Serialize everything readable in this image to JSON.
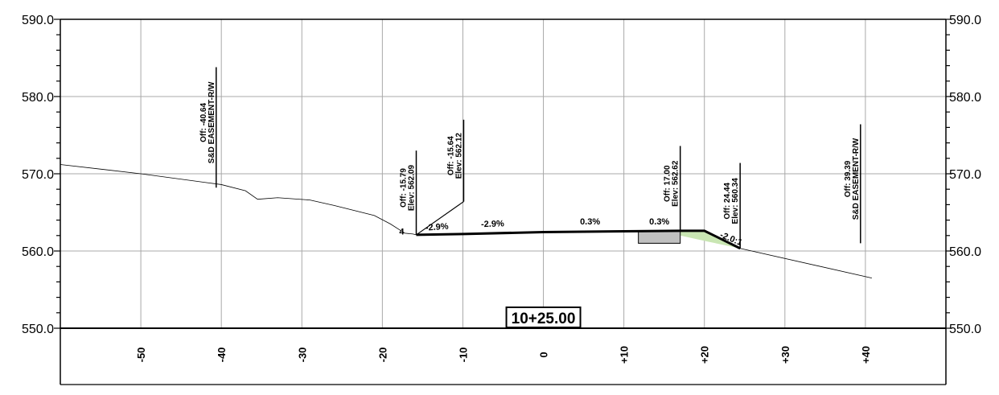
{
  "station": "10+25.00",
  "axes": {
    "x_range": [
      -60,
      50
    ],
    "y_range": [
      550,
      590
    ],
    "y_ticks": [
      {
        "value": 590,
        "label": "590.0"
      },
      {
        "value": 580,
        "label": "580.0"
      },
      {
        "value": 570,
        "label": "570.0"
      },
      {
        "value": 560,
        "label": "560.0"
      },
      {
        "value": 550,
        "label": "550.0"
      }
    ],
    "x_ticks": [
      {
        "value": -50,
        "label": "-50"
      },
      {
        "value": -40,
        "label": "-40"
      },
      {
        "value": -30,
        "label": "-30"
      },
      {
        "value": -20,
        "label": "-20"
      },
      {
        "value": -10,
        "label": "-10"
      },
      {
        "value": 0,
        "label": "0"
      },
      {
        "value": 10,
        "label": "+10"
      },
      {
        "value": 20,
        "label": "+20"
      },
      {
        "value": 30,
        "label": "+30"
      },
      {
        "value": 40,
        "label": "+40"
      }
    ]
  },
  "annotations": [
    {
      "x": -40.64,
      "y_low": 568.2,
      "y_high": 583.8,
      "line1": "Off: -40.64",
      "line2": "S&D EASEMENT-R/W"
    },
    {
      "x": -15.79,
      "y_low": 562.1,
      "y_high": 573.0,
      "line1": "Off: -15.79",
      "line2": "Elev: 562.09"
    },
    {
      "x": -9.9,
      "y_low": 566.4,
      "y_high": 577.0,
      "line1": "Off: -15.64",
      "line2": "Elev: 562.12"
    },
    {
      "x": 17.0,
      "y_low": 562.6,
      "y_high": 573.6,
      "line1": "Off: 17.00",
      "line2": "Elev: 562.62"
    },
    {
      "x": 24.44,
      "y_low": 560.3,
      "y_high": 571.4,
      "line1": "Off: 24.44",
      "line2": "Elev: 560.34"
    },
    {
      "x": 39.39,
      "y_low": 561.0,
      "y_high": 576.4,
      "line1": "Off: 39.39",
      "line2": "S&D EASEMENT-R/W"
    }
  ],
  "slopes": [
    {
      "x": -13.2,
      "y": 562.75,
      "text": "-2.9%",
      "rot": -4
    },
    {
      "x": -6.3,
      "y": 563.15,
      "text": "-2.9%",
      "rot": -2
    },
    {
      "x": 5.8,
      "y": 563.45,
      "text": "0.3%",
      "rot": 0
    },
    {
      "x": 14.4,
      "y": 563.45,
      "text": "0.3%",
      "rot": 0
    },
    {
      "x": 23.2,
      "y": 561.25,
      "text": "-2.0:1",
      "rot": 22
    },
    {
      "x": -17.6,
      "y": 562.15,
      "text": "4",
      "rot": 0
    }
  ],
  "ground": [
    [
      -60,
      571.2
    ],
    [
      -50,
      570.0
    ],
    [
      -40,
      568.6
    ],
    [
      -37,
      567.8
    ],
    [
      -35.5,
      566.7
    ],
    [
      -33,
      566.9
    ],
    [
      -29,
      566.6
    ],
    [
      -26,
      565.9
    ],
    [
      -21,
      564.6
    ],
    [
      -19,
      563.5
    ],
    [
      -17.2,
      562.3
    ],
    [
      -16.2,
      562.2
    ],
    [
      -15.8,
      562.1
    ]
  ],
  "ground_right": [
    [
      24.44,
      560.34
    ],
    [
      40.8,
      556.5
    ]
  ],
  "design": [
    [
      -15.79,
      562.09
    ],
    [
      -9.9,
      562.2
    ],
    [
      0,
      562.45
    ],
    [
      17.0,
      562.62
    ],
    [
      20.0,
      562.62
    ],
    [
      24.44,
      560.34
    ]
  ],
  "design_left_diag": [
    [
      -15.79,
      562.09
    ],
    [
      -9.9,
      566.4
    ]
  ],
  "fill": [
    [
      17.0,
      562.62
    ],
    [
      20.0,
      562.62
    ],
    [
      24.44,
      560.34
    ],
    [
      20.5,
      561.2
    ],
    [
      17.0,
      562.0
    ]
  ],
  "fill_color": "#c9e6b3",
  "box": {
    "x1": 11.8,
    "x2": 17.0,
    "y_top": 562.62,
    "y_bottom": 561.0,
    "color": "#c0c0c0"
  }
}
